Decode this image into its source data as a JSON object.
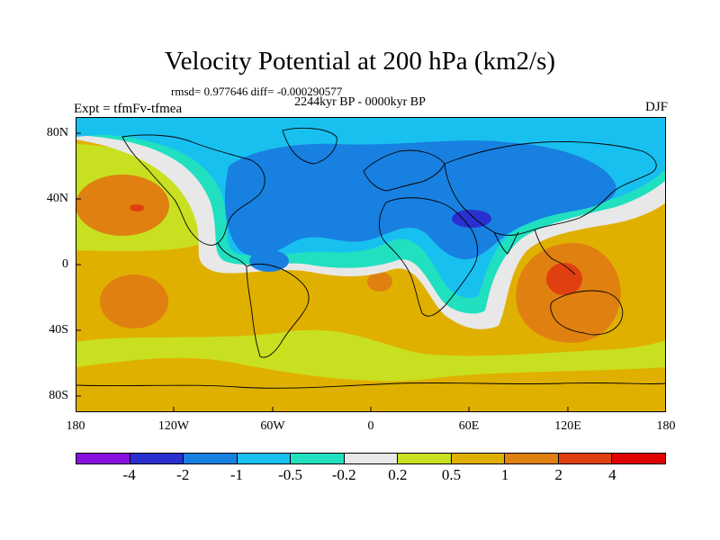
{
  "title": "Velocity Potential at 200 hPa (km2/s)",
  "stats": "rmsd= 0.977646 diff= -0.000290577",
  "subtitle": "2244kyr BP - 0000kyr BP",
  "left_label": "Expt = tfmFv-tfmea",
  "right_label": "DJF",
  "lat_ticks": [
    "80N",
    "40N",
    "0",
    "40S",
    "80S"
  ],
  "lon_ticks": [
    "180",
    "120W",
    "60W",
    "0",
    "60E",
    "120E",
    "180"
  ],
  "colorbar": {
    "colors": [
      "#8a10e0",
      "#2a30d0",
      "#1880e0",
      "#18c0f0",
      "#20e0c0",
      "#e8e8e8",
      "#c8e020",
      "#e0b000",
      "#e08010",
      "#e04010",
      "#e00000"
    ],
    "labels": [
      "-4",
      "-2",
      "-1",
      "-0.5",
      "-0.2",
      "0.2",
      "0.5",
      "1",
      "2",
      "4"
    ]
  },
  "map": {
    "background": "#e0b000",
    "field_colors": {
      "strong_neg": "#2a30d0",
      "neg": "#1880e0",
      "weak_neg": "#18c0f0",
      "near_zero_neg": "#20e0c0",
      "zero": "#e8e8e8",
      "weak_pos": "#c8e020",
      "pos": "#e0b000",
      "strong_pos": "#e08010",
      "stronger_pos": "#e04010"
    }
  }
}
